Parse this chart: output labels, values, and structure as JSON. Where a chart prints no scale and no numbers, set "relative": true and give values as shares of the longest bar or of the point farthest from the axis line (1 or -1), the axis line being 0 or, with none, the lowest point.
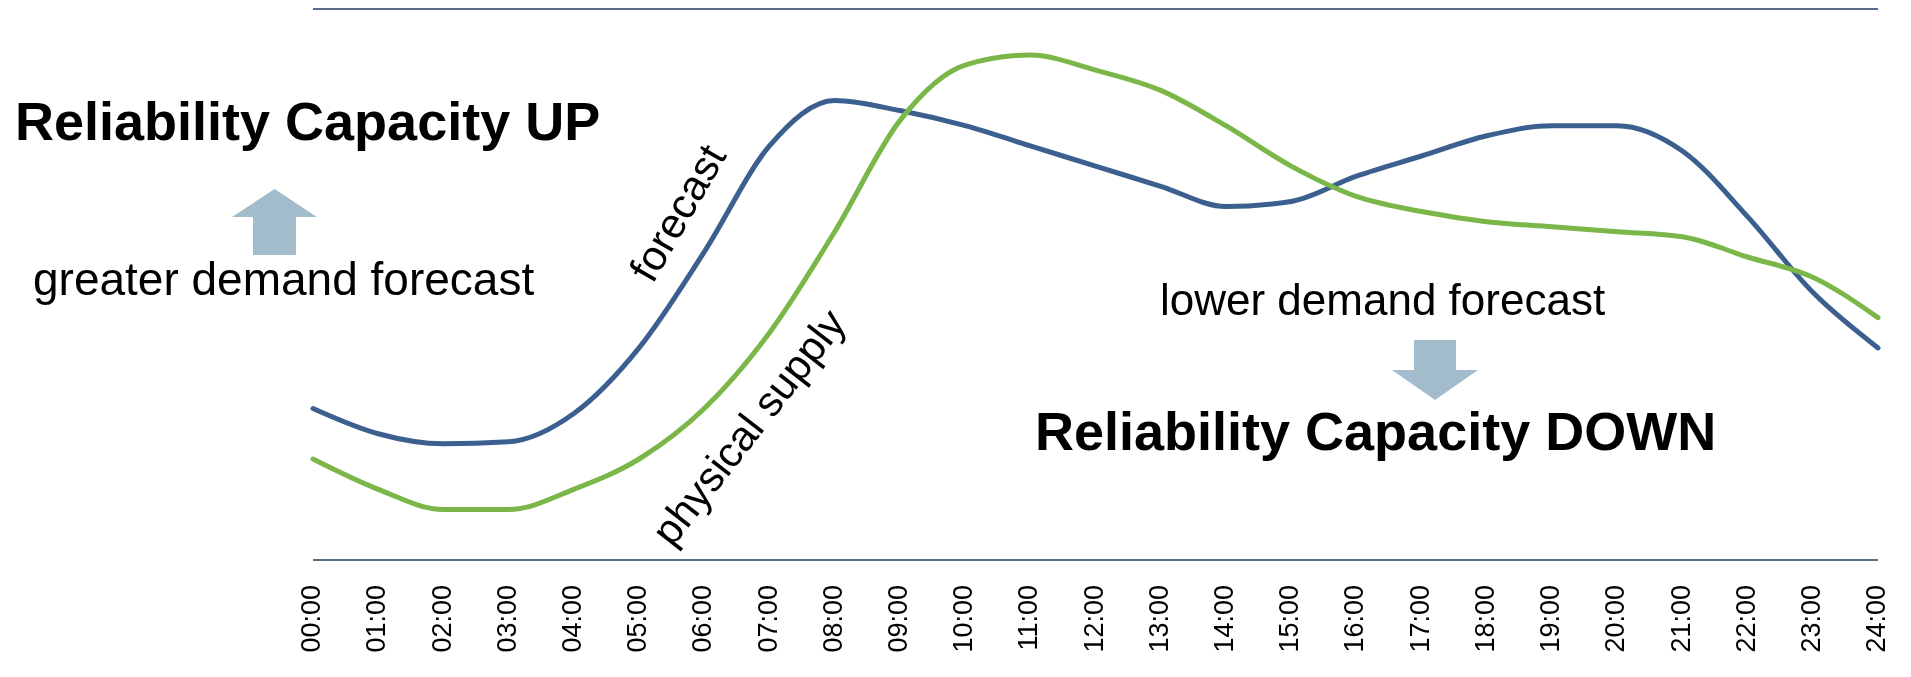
{
  "chart_data": {
    "type": "line",
    "relative": true,
    "x": [
      0,
      1,
      2,
      3,
      4,
      5,
      6,
      7,
      8,
      9,
      10,
      11,
      12,
      13,
      14,
      15,
      16,
      17,
      18,
      19,
      20,
      21,
      22,
      23,
      24
    ],
    "xlim": [
      0,
      24
    ],
    "xticks": [
      {
        "value": 0,
        "label": "00:00"
      },
      {
        "value": 1,
        "label": "01:00"
      },
      {
        "value": 2,
        "label": "02:00"
      },
      {
        "value": 3,
        "label": "03:00"
      },
      {
        "value": 4,
        "label": "04:00"
      },
      {
        "value": 5,
        "label": "05:00"
      },
      {
        "value": 6,
        "label": "06:00"
      },
      {
        "value": 7,
        "label": "07:00"
      },
      {
        "value": 8,
        "label": "08:00"
      },
      {
        "value": 9,
        "label": "09:00"
      },
      {
        "value": 10,
        "label": "10:00"
      },
      {
        "value": 11,
        "label": "11:00"
      },
      {
        "value": 12,
        "label": "12:00"
      },
      {
        "value": 13,
        "label": "13:00"
      },
      {
        "value": 14,
        "label": "14:00"
      },
      {
        "value": 15,
        "label": "15:00"
      },
      {
        "value": 16,
        "label": "16:00"
      },
      {
        "value": 17,
        "label": "17:00"
      },
      {
        "value": 18,
        "label": "18:00"
      },
      {
        "value": 19,
        "label": "19:00"
      },
      {
        "value": 20,
        "label": "20:00"
      },
      {
        "value": 21,
        "label": "21:00"
      },
      {
        "value": 22,
        "label": "22:00"
      },
      {
        "value": 23,
        "label": "23:00"
      },
      {
        "value": 24,
        "label": "24:00"
      }
    ],
    "series": [
      {
        "name": "forecast",
        "color": "#3b5f8f",
        "values": [
          0.3,
          0.25,
          0.23,
          0.234,
          0.29,
          0.42,
          0.61,
          0.82,
          0.91,
          0.89,
          0.86,
          0.82,
          0.78,
          0.74,
          0.7,
          0.71,
          0.76,
          0.8,
          0.84,
          0.86,
          0.86,
          0.81,
          0.68,
          0.53,
          0.42
        ]
      },
      {
        "name": "physical supply",
        "color": "#7ab648",
        "values": [
          0.2,
          0.14,
          0.1,
          0.1,
          0.14,
          0.2,
          0.3,
          0.45,
          0.65,
          0.87,
          0.98,
          1.0,
          0.97,
          0.93,
          0.86,
          0.78,
          0.72,
          0.69,
          0.67,
          0.66,
          0.65,
          0.64,
          0.6,
          0.56,
          0.48
        ]
      }
    ],
    "annotations": [
      "Reliability Capacity UP",
      "greater demand forecast",
      "lower demand forecast",
      "Reliability Capacity DOWN"
    ],
    "line_style": "solid"
  }
}
